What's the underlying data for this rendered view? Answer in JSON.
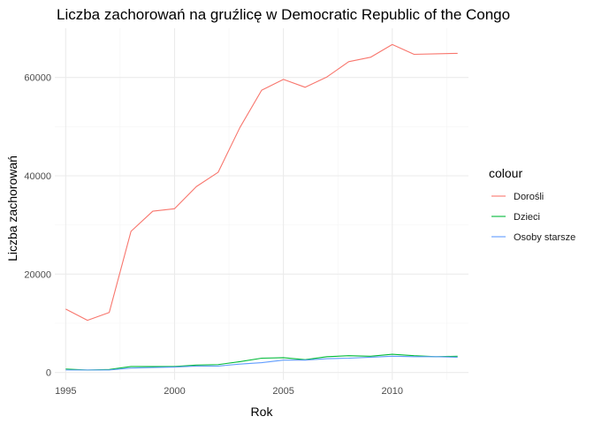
{
  "chart_data": {
    "type": "line",
    "title": "Liczba zachorowań na gruźlicę w Democratic Republic of the Congo",
    "xlabel": "Rok",
    "ylabel": "Liczba zachorowań",
    "xlim": [
      1994.5,
      2013.5
    ],
    "ylim": [
      -1500,
      70000
    ],
    "x": [
      1995,
      1996,
      1997,
      1998,
      1999,
      2000,
      2001,
      2002,
      2003,
      2004,
      2005,
      2006,
      2007,
      2008,
      2009,
      2010,
      2011,
      2012,
      2013
    ],
    "x_ticks": [
      1995,
      2000,
      2005,
      2010
    ],
    "x_tick_labels": [
      "1995",
      "2000",
      "2005",
      "2010"
    ],
    "y_ticks": [
      0,
      20000,
      40000,
      60000
    ],
    "y_tick_labels": [
      "0",
      "20000",
      "40000",
      "60000"
    ],
    "grid": true,
    "legend_position": "right",
    "legend_title": "colour",
    "series": [
      {
        "name": "Dorośli",
        "color": "#F8766D",
        "values": [
          12900,
          10600,
          12200,
          28700,
          32800,
          33300,
          37800,
          40700,
          49800,
          57400,
          59600,
          58000,
          60100,
          63200,
          64100,
          66700,
          64700,
          64800,
          64900
        ]
      },
      {
        "name": "Dzieci",
        "color": "#00BA38",
        "values": [
          700,
          500,
          600,
          1200,
          1200,
          1200,
          1500,
          1600,
          2200,
          2900,
          3000,
          2600,
          3200,
          3400,
          3300,
          3700,
          3400,
          3200,
          3300
        ]
      },
      {
        "name": "Osoby starsze",
        "color": "#619CFF",
        "values": [
          500,
          500,
          500,
          900,
          1000,
          1100,
          1300,
          1300,
          1700,
          2000,
          2500,
          2500,
          2800,
          2900,
          3100,
          3300,
          3200,
          3200,
          3100
        ]
      }
    ]
  }
}
